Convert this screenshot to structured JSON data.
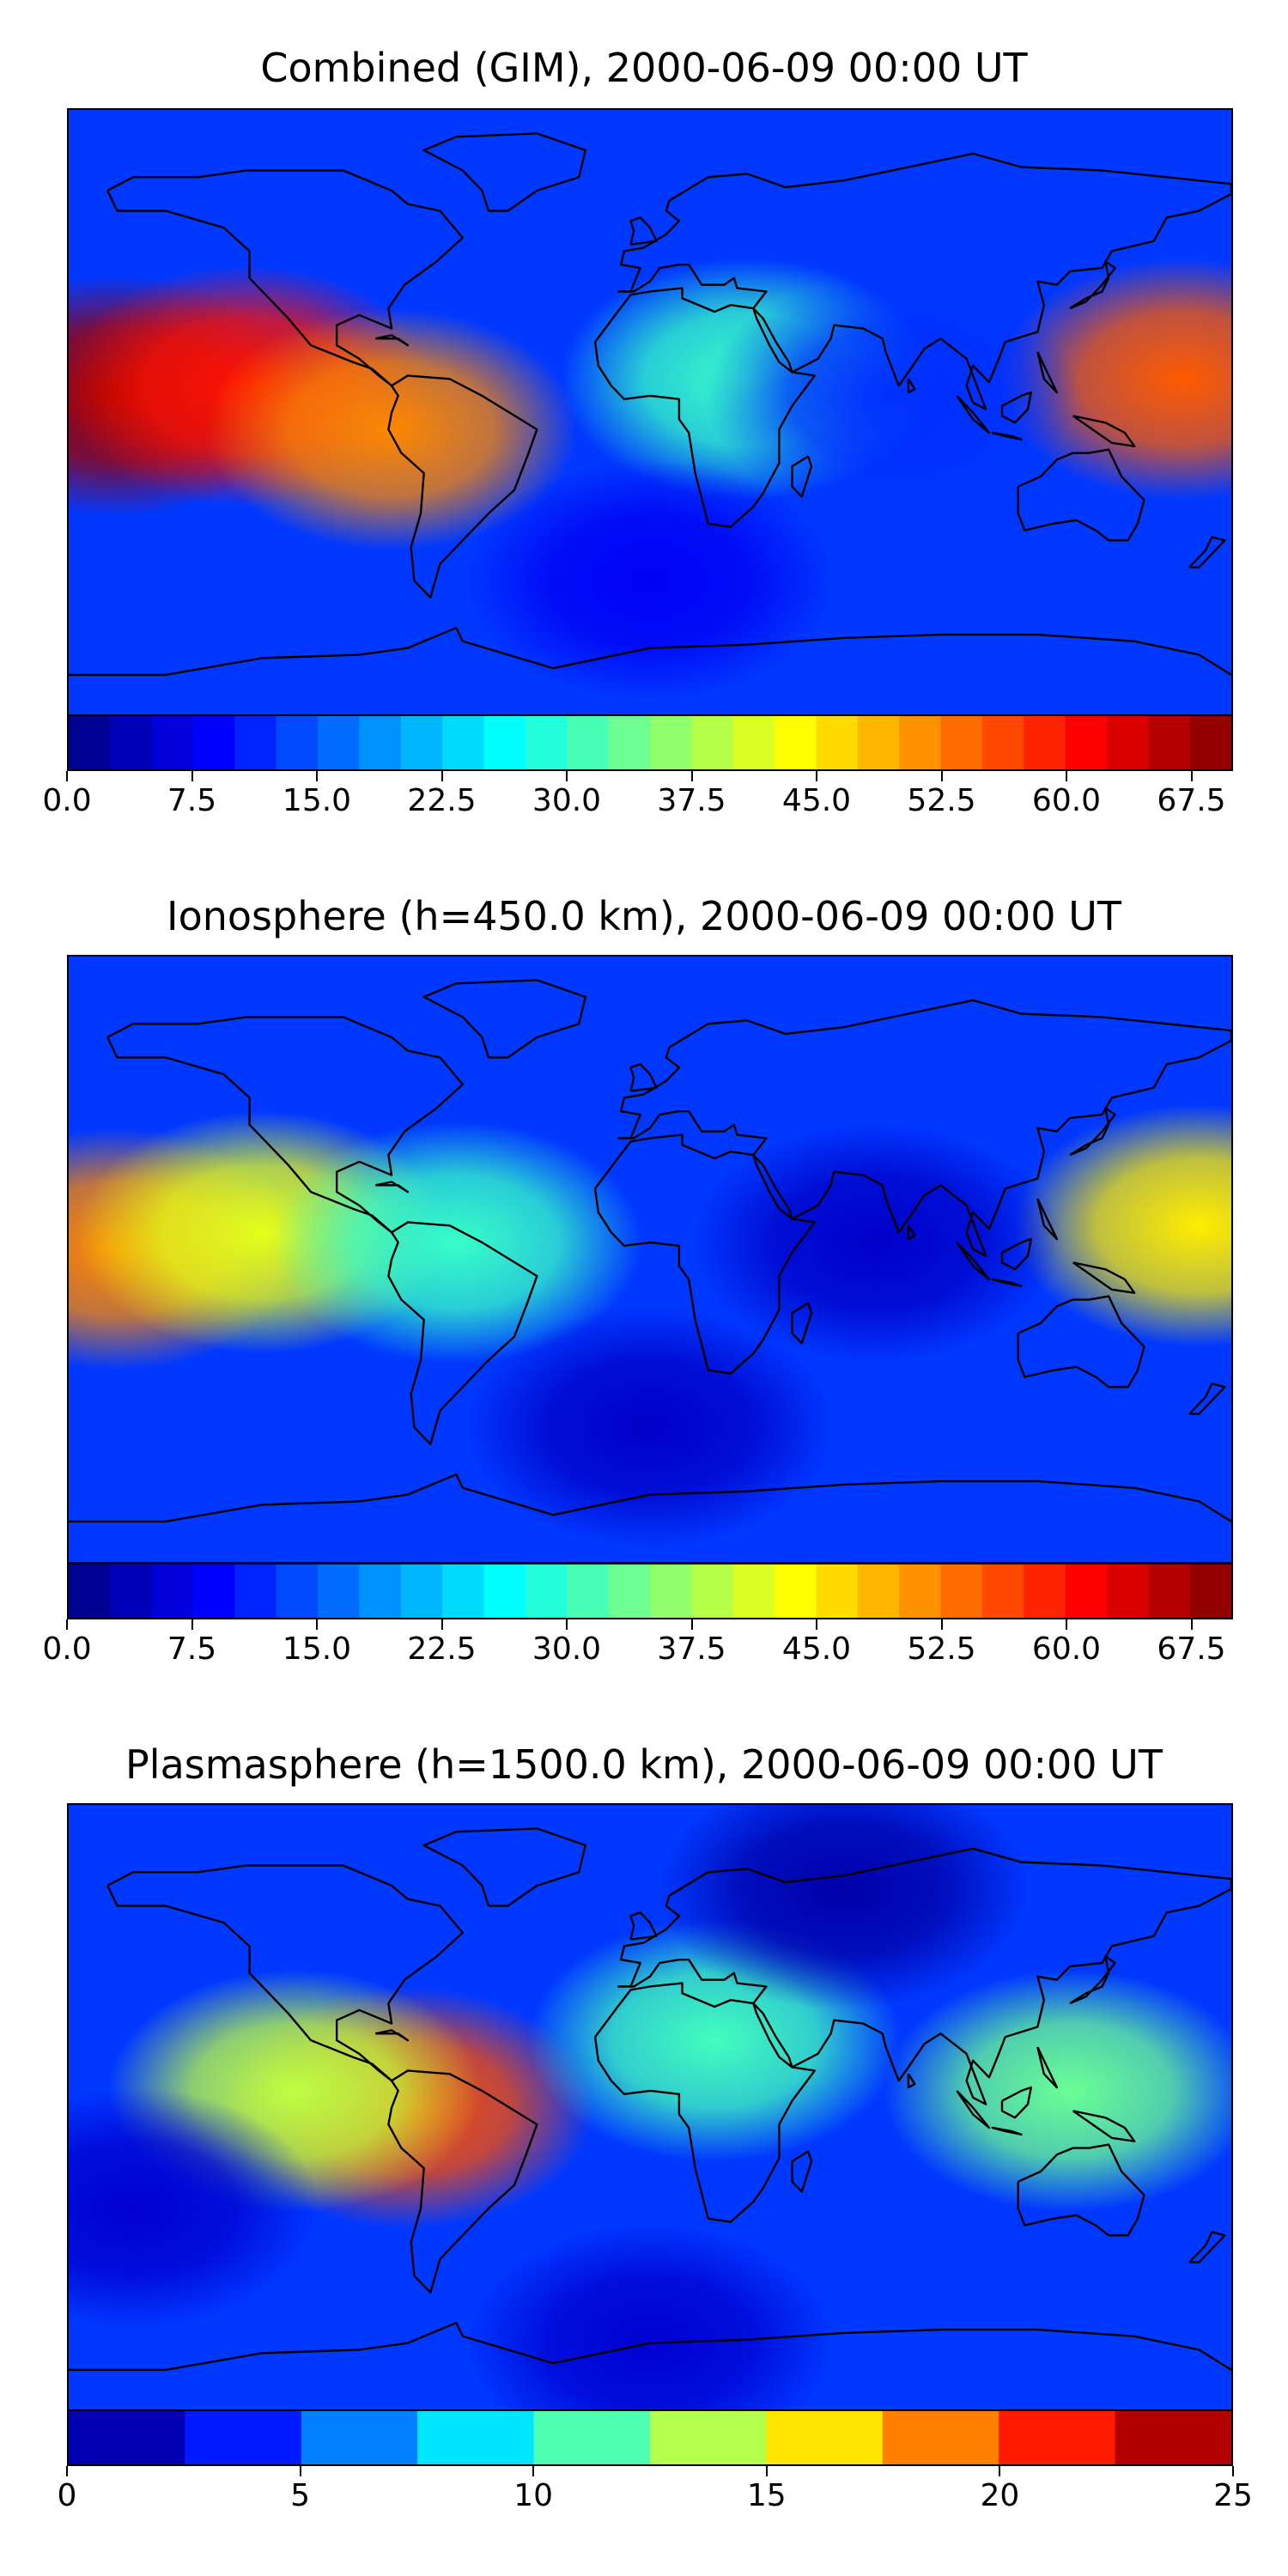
{
  "chart_data": [
    {
      "type": "heatmap",
      "title": "Combined (GIM), 2000-06-09 00:00 UT",
      "colorbar": {
        "min": 0,
        "max": 70,
        "step": 2.5,
        "tick_labels": [
          "0.0",
          "7.5",
          "15.0",
          "22.5",
          "30.0",
          "37.5",
          "45.0",
          "52.5",
          "60.0",
          "67.5"
        ],
        "tick_values": [
          0,
          7.5,
          15,
          22.5,
          30,
          37.5,
          45,
          52.5,
          60,
          67.5
        ]
      },
      "colormap": "jet",
      "features": [
        {
          "lon": -165,
          "lat": 5,
          "value": 68
        },
        {
          "lon": -125,
          "lat": 8,
          "value": 60
        },
        {
          "lon": -80,
          "lat": -5,
          "value": 52
        },
        {
          "lon": 165,
          "lat": 10,
          "value": 55
        },
        {
          "lon": 30,
          "lat": 10,
          "value": 30
        },
        {
          "lon": 75,
          "lat": 5,
          "value": 12
        },
        {
          "lon": 0,
          "lat": -50,
          "value": 8
        }
      ]
    },
    {
      "type": "heatmap",
      "title": "Ionosphere  (h=450.0 km), 2000-06-09 00:00 UT",
      "colorbar": {
        "min": 0,
        "max": 70,
        "step": 2.5,
        "tick_labels": [
          "0.0",
          "7.5",
          "15.0",
          "22.5",
          "30.0",
          "37.5",
          "45.0",
          "52.5",
          "60.0",
          "67.5"
        ],
        "tick_values": [
          0,
          7.5,
          15,
          22.5,
          30,
          37.5,
          45,
          52.5,
          60,
          67.5
        ]
      },
      "colormap": "jet",
      "features": [
        {
          "lon": -165,
          "lat": 3,
          "value": 52
        },
        {
          "lon": -120,
          "lat": 8,
          "value": 42
        },
        {
          "lon": 170,
          "lat": 10,
          "value": 45
        },
        {
          "lon": -60,
          "lat": 5,
          "value": 30
        },
        {
          "lon": 70,
          "lat": 5,
          "value": 5
        },
        {
          "lon": 0,
          "lat": -50,
          "value": 5
        }
      ]
    },
    {
      "type": "heatmap",
      "title": "Plasmasphere (h=1500.0 km), 2000-06-09 00:00 UT",
      "colorbar": {
        "min": 0,
        "max": 25,
        "step": 2.5,
        "tick_labels": [
          "0",
          "5",
          "10",
          "15",
          "20",
          "25"
        ],
        "tick_values": [
          0,
          5,
          10,
          15,
          20,
          25
        ]
      },
      "colormap": "jet",
      "features": [
        {
          "lon": -75,
          "lat": 0,
          "value": 20
        },
        {
          "lon": -110,
          "lat": 5,
          "value": 14
        },
        {
          "lon": 130,
          "lat": 5,
          "value": 12
        },
        {
          "lon": 20,
          "lat": 20,
          "value": 11
        },
        {
          "lon": 60,
          "lat": 65,
          "value": 1
        },
        {
          "lon": -160,
          "lat": -30,
          "value": 2
        },
        {
          "lon": 0,
          "lat": -70,
          "value": 2
        }
      ]
    }
  ]
}
